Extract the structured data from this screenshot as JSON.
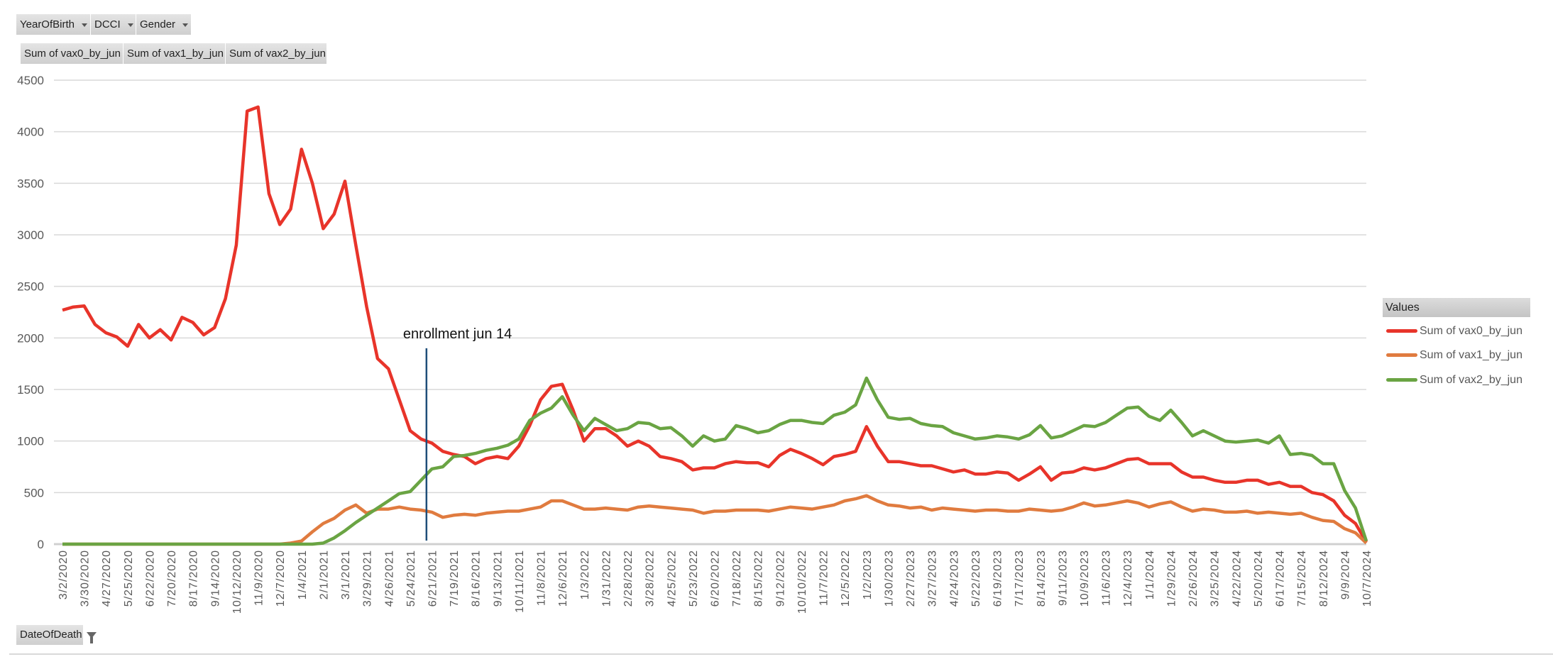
{
  "filters": {
    "row_fields": [
      {
        "label": "YearOfBirth"
      },
      {
        "label": "DCCI"
      },
      {
        "label": "Gender"
      }
    ],
    "value_fields": [
      {
        "label": "Sum of vax0_by_jun"
      },
      {
        "label": "Sum of vax1_by_jun"
      },
      {
        "label": "Sum of vax2_by_jun"
      }
    ],
    "axis_field": {
      "label": "DateOfDeath"
    }
  },
  "legend": {
    "title": "Values"
  },
  "chart_data": {
    "type": "line",
    "title": "",
    "xlabel": "",
    "ylabel": "",
    "ylim": [
      0,
      4500
    ],
    "yticks": [
      "0",
      "500",
      "1000",
      "1500",
      "2000",
      "2500",
      "3000",
      "3500",
      "4000",
      "4500"
    ],
    "ytick_values": [
      0,
      500,
      1000,
      1500,
      2000,
      2500,
      3000,
      3500,
      4000,
      4500
    ],
    "grid": true,
    "legend_position": "right",
    "x_start": "3/2/2020",
    "x_end": "10/7/2024",
    "x_total_weeks": 240,
    "x_step_weeks": 2,
    "xtick_labels": [
      "3/2/2020",
      "3/30/2020",
      "4/27/2020",
      "5/25/2020",
      "6/22/2020",
      "7/20/2020",
      "8/17/2020",
      "9/14/2020",
      "10/12/2020",
      "11/9/2020",
      "12/7/2020",
      "1/4/2021",
      "2/1/2021",
      "3/1/2021",
      "3/29/2021",
      "4/26/2021",
      "5/24/2021",
      "6/21/2021",
      "7/19/2021",
      "8/16/2021",
      "9/13/2021",
      "10/11/2021",
      "11/8/2021",
      "12/6/2021",
      "1/3/2022",
      "1/31/2022",
      "2/28/2022",
      "3/28/2022",
      "4/25/2022",
      "5/23/2022",
      "6/20/2022",
      "7/18/2022",
      "8/15/2022",
      "9/12/2022",
      "10/10/2022",
      "11/7/2022",
      "12/5/2022",
      "1/2/2023",
      "1/30/2023",
      "2/27/2023",
      "3/27/2023",
      "4/24/2023",
      "5/22/2023",
      "6/19/2023",
      "7/17/2023",
      "8/14/2023",
      "9/11/2023",
      "10/9/2023",
      "11/6/2023",
      "12/4/2023",
      "1/1/2024",
      "1/29/2024",
      "2/26/2024",
      "3/25/2024",
      "4/22/2024",
      "5/20/2024",
      "6/17/2024",
      "7/15/2024",
      "8/12/2024",
      "9/9/2024",
      "10/7/2024"
    ],
    "series": [
      {
        "name": "Sum of vax0_by_jun",
        "color": "#e8342a",
        "values": [
          2270,
          2300,
          2310,
          2130,
          2050,
          2010,
          1920,
          2130,
          2000,
          2080,
          1980,
          2200,
          2150,
          2030,
          2100,
          2380,
          2900,
          4200,
          4240,
          3400,
          3100,
          3250,
          3830,
          3500,
          3060,
          3200,
          3520,
          2900,
          2300,
          1800,
          1700,
          1400,
          1100,
          1020,
          980,
          900,
          870,
          850,
          780,
          830,
          850,
          830,
          950,
          1150,
          1400,
          1530,
          1550,
          1300,
          1000,
          1120,
          1120,
          1050,
          950,
          1000,
          950,
          850,
          830,
          800,
          720,
          740,
          740,
          780,
          800,
          790,
          790,
          750,
          860,
          920,
          880,
          830,
          770,
          850,
          870,
          900,
          1140,
          950,
          800,
          800,
          780,
          760,
          760,
          730,
          700,
          720,
          680,
          680,
          700,
          690,
          620,
          680,
          750,
          620,
          690,
          700,
          740,
          720,
          740,
          780,
          820,
          830,
          780,
          780,
          780,
          700,
          650,
          650,
          620,
          600,
          600,
          620,
          620,
          580,
          600,
          560,
          560,
          500,
          480,
          420,
          280,
          200,
          20
        ]
      },
      {
        "name": "Sum of vax1_by_jun",
        "color": "#e07b3f",
        "values": [
          0,
          0,
          0,
          0,
          0,
          0,
          0,
          0,
          0,
          0,
          0,
          0,
          0,
          0,
          0,
          0,
          0,
          0,
          0,
          0,
          0,
          10,
          30,
          120,
          200,
          250,
          330,
          380,
          300,
          340,
          340,
          360,
          340,
          330,
          310,
          260,
          280,
          290,
          280,
          300,
          310,
          320,
          320,
          340,
          360,
          420,
          420,
          380,
          340,
          340,
          350,
          340,
          330,
          360,
          370,
          360,
          350,
          340,
          330,
          300,
          320,
          320,
          330,
          330,
          330,
          320,
          340,
          360,
          350,
          340,
          360,
          380,
          420,
          440,
          470,
          420,
          380,
          370,
          350,
          360,
          330,
          350,
          340,
          330,
          320,
          330,
          330,
          320,
          320,
          340,
          330,
          320,
          330,
          360,
          400,
          370,
          380,
          400,
          420,
          400,
          360,
          390,
          410,
          360,
          320,
          340,
          330,
          310,
          310,
          320,
          300,
          310,
          300,
          290,
          300,
          260,
          230,
          220,
          150,
          110,
          10
        ]
      },
      {
        "name": "Sum of vax2_by_jun",
        "color": "#6aa443",
        "values": [
          0,
          0,
          0,
          0,
          0,
          0,
          0,
          0,
          0,
          0,
          0,
          0,
          0,
          0,
          0,
          0,
          0,
          0,
          0,
          0,
          0,
          0,
          0,
          0,
          10,
          60,
          130,
          210,
          280,
          350,
          420,
          490,
          510,
          620,
          730,
          750,
          850,
          860,
          880,
          910,
          930,
          960,
          1020,
          1200,
          1270,
          1320,
          1430,
          1250,
          1100,
          1220,
          1160,
          1100,
          1120,
          1180,
          1170,
          1120,
          1130,
          1050,
          950,
          1050,
          1000,
          1020,
          1150,
          1120,
          1080,
          1100,
          1160,
          1200,
          1200,
          1180,
          1170,
          1250,
          1280,
          1350,
          1610,
          1400,
          1230,
          1210,
          1220,
          1170,
          1150,
          1140,
          1080,
          1050,
          1020,
          1030,
          1050,
          1040,
          1020,
          1060,
          1150,
          1030,
          1050,
          1100,
          1150,
          1140,
          1180,
          1250,
          1320,
          1330,
          1240,
          1200,
          1300,
          1180,
          1050,
          1100,
          1050,
          1000,
          990,
          1000,
          1010,
          980,
          1050,
          870,
          880,
          860,
          780,
          780,
          520,
          350,
          30
        ]
      }
    ],
    "annotations": [
      {
        "text": "enrollment jun 14",
        "x_week": 67,
        "y_top": 1900,
        "color": "#1f4e79"
      }
    ]
  }
}
